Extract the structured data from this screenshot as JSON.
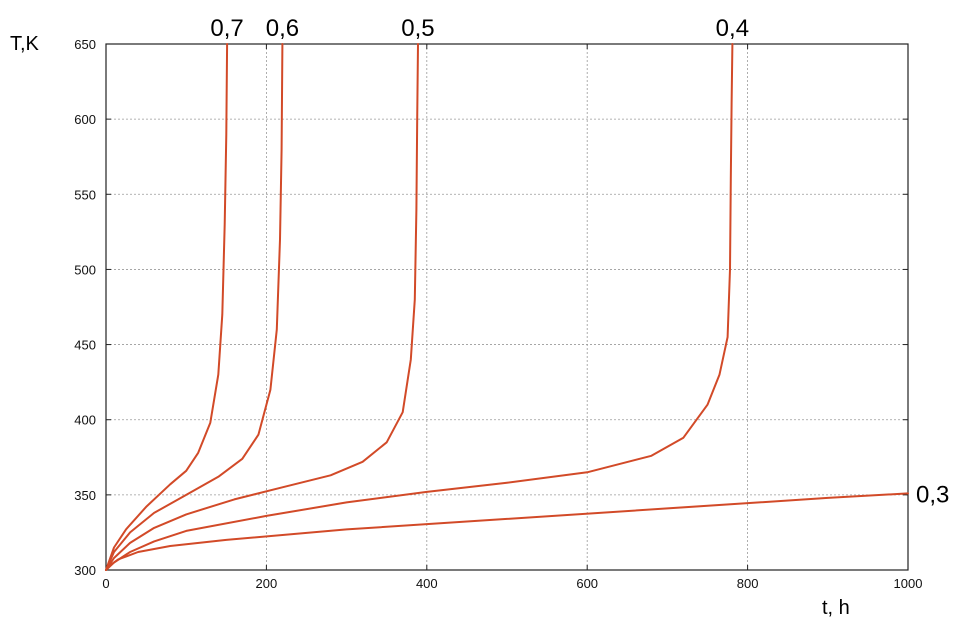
{
  "chart_data": {
    "type": "line",
    "xlabel": "t, h",
    "ylabel": "T,K",
    "xlim": [
      0,
      1000
    ],
    "ylim": [
      300,
      650
    ],
    "xticks": [
      0,
      200,
      400,
      600,
      800,
      1000
    ],
    "yticks": [
      300,
      350,
      400,
      450,
      500,
      550,
      600,
      650
    ],
    "grid": true,
    "line_color": "#d24a28",
    "series": [
      {
        "name": "0,7",
        "points": [
          [
            0,
            300
          ],
          [
            10,
            315
          ],
          [
            25,
            327
          ],
          [
            50,
            342
          ],
          [
            80,
            357
          ],
          [
            100,
            366
          ],
          [
            115,
            378
          ],
          [
            130,
            398
          ],
          [
            140,
            430
          ],
          [
            145,
            470
          ],
          [
            148,
            530
          ],
          [
            150,
            590
          ],
          [
            151,
            650
          ]
        ]
      },
      {
        "name": "0,6",
        "points": [
          [
            0,
            300
          ],
          [
            10,
            312
          ],
          [
            30,
            325
          ],
          [
            60,
            338
          ],
          [
            100,
            350
          ],
          [
            140,
            362
          ],
          [
            170,
            374
          ],
          [
            190,
            390
          ],
          [
            205,
            420
          ],
          [
            213,
            460
          ],
          [
            217,
            520
          ],
          [
            219,
            580
          ],
          [
            220,
            650
          ]
        ]
      },
      {
        "name": "0,5",
        "points": [
          [
            0,
            300
          ],
          [
            10,
            308
          ],
          [
            30,
            318
          ],
          [
            60,
            328
          ],
          [
            100,
            337
          ],
          [
            160,
            347
          ],
          [
            220,
            355
          ],
          [
            280,
            363
          ],
          [
            320,
            372
          ],
          [
            350,
            385
          ],
          [
            370,
            405
          ],
          [
            380,
            440
          ],
          [
            385,
            480
          ],
          [
            387,
            540
          ],
          [
            388,
            600
          ],
          [
            389,
            650
          ]
        ]
      },
      {
        "name": "0,4",
        "points": [
          [
            0,
            300
          ],
          [
            10,
            305
          ],
          [
            30,
            312
          ],
          [
            60,
            319
          ],
          [
            100,
            326
          ],
          [
            200,
            336
          ],
          [
            300,
            345
          ],
          [
            400,
            352
          ],
          [
            500,
            358
          ],
          [
            600,
            365
          ],
          [
            680,
            376
          ],
          [
            720,
            388
          ],
          [
            750,
            410
          ],
          [
            765,
            430
          ],
          [
            775,
            455
          ],
          [
            778,
            500
          ],
          [
            779,
            560
          ],
          [
            780,
            610
          ],
          [
            781,
            650
          ]
        ]
      },
      {
        "name": "0,3",
        "points": [
          [
            0,
            300
          ],
          [
            5,
            303
          ],
          [
            15,
            307
          ],
          [
            40,
            312
          ],
          [
            80,
            316
          ],
          [
            150,
            320
          ],
          [
            300,
            327
          ],
          [
            500,
            334
          ],
          [
            700,
            341
          ],
          [
            900,
            348
          ],
          [
            1000,
            351
          ]
        ]
      }
    ]
  }
}
